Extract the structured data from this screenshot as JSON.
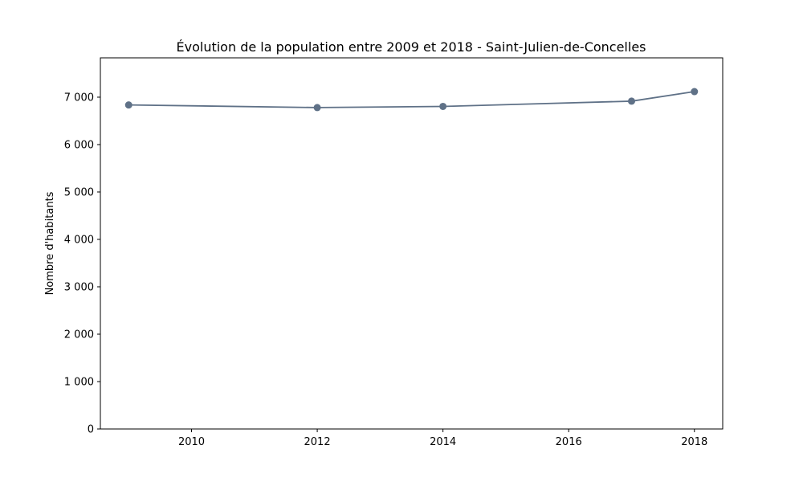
{
  "chart_data": {
    "type": "line",
    "title": "Évolution de la population entre 2009 et 2018 - Saint-Julien-de-Concelles",
    "xlabel": "",
    "ylabel": "Nombre d'habitants",
    "x": [
      2009,
      2012,
      2014,
      2017,
      2018
    ],
    "series": [
      {
        "values": [
          6836,
          6781,
          6805,
          6916,
          7118
        ]
      }
    ],
    "xlim": [
      2008.55,
      2018.45
    ],
    "ylim": [
      0,
      7830
    ],
    "xticks": [
      2010,
      2012,
      2014,
      2016,
      2018
    ],
    "xtick_labels": [
      "2010",
      "2012",
      "2014",
      "2016",
      "2018"
    ],
    "yticks": [
      0,
      1000,
      2000,
      3000,
      4000,
      5000,
      6000,
      7000
    ],
    "ytick_labels": [
      "0",
      "1 000",
      "2 000",
      "3 000",
      "4 000",
      "5 000",
      "6 000",
      "7 000"
    ],
    "grid": false,
    "colors": {
      "line": "#5f7187",
      "axes": "#000000"
    }
  }
}
